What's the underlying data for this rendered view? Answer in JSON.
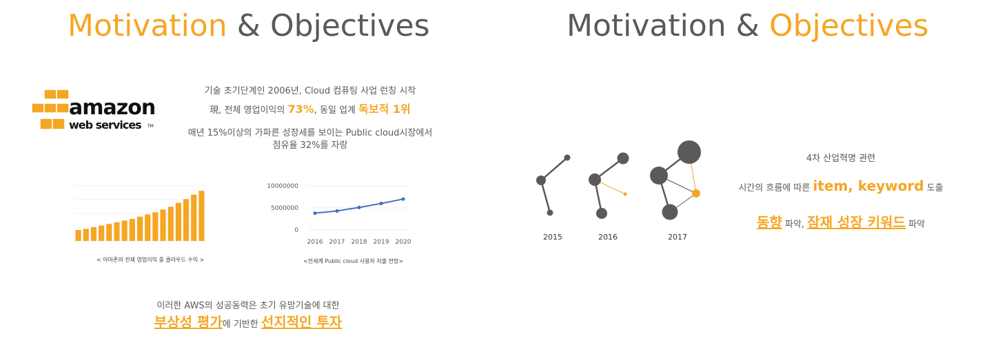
{
  "left": {
    "title_part1": "Motivation",
    "title_part2": " & Objectives",
    "logo": {
      "brand": "amazon",
      "sub": "web services",
      "tm": "TM"
    },
    "line1": "기술 초기단계인 2006년, Cloud 컴퓨팅 사업 런칭 시작",
    "line2_pre": "現, 전체 영업이익의 ",
    "line2_hl1": "73%",
    "line2_mid": ", 동일 업계 ",
    "line2_hl2": "독보적 1위",
    "line3a": "매년 15%이상의 가파른 성장세를 보이는 Public cloud시장에서",
    "line3b": "점유율 32%를 자랑",
    "bar_caption": "< 아마존의 전체 영업이익 중 클라우드 수익 >",
    "line_caption": "<전세계 Public cloud 사용자 지출 전망>",
    "bottom1": "이러한 AWS의 성공동력은 초기 유망기술에 대한",
    "bottom2_hl1": "부상성 평가",
    "bottom2_mid": "에 기반한 ",
    "bottom2_hl2": "선지적인 투자"
  },
  "right": {
    "title_part1": "Motivation & ",
    "title_part2": "Objectives",
    "years": [
      "2015",
      "2016",
      "2017"
    ],
    "line1": "4차 산업혁명 관련",
    "line2_pre": "시간의 흐름에 따른 ",
    "line2_hl": "item, keyword",
    "line2_post": " 도출",
    "line3_hl1": "동향",
    "line3_mid": " 파악, ",
    "line3_hl2": "잠재 성장 키워드",
    "line3_post": " 파악"
  },
  "colors": {
    "accent": "#f5a623",
    "text": "#595959",
    "node": "#5a5a5a",
    "line": "#4472c4"
  },
  "chart_data": [
    {
      "type": "bar",
      "title": "",
      "values": [
        1,
        1.1,
        1.25,
        1.4,
        1.55,
        1.7,
        1.85,
        2.0,
        2.2,
        2.4,
        2.6,
        2.85,
        3.1,
        3.45,
        3.8,
        4.2,
        4.55
      ],
      "ylim": [
        0,
        5
      ]
    },
    {
      "type": "line",
      "x": [
        2016,
        2017,
        2018,
        2019,
        2020
      ],
      "values": [
        3800000,
        4300000,
        5100000,
        6000000,
        7000000
      ],
      "yticks": [
        "10000000",
        "5000000",
        "0"
      ],
      "ylim": [
        0,
        10000000
      ]
    }
  ]
}
